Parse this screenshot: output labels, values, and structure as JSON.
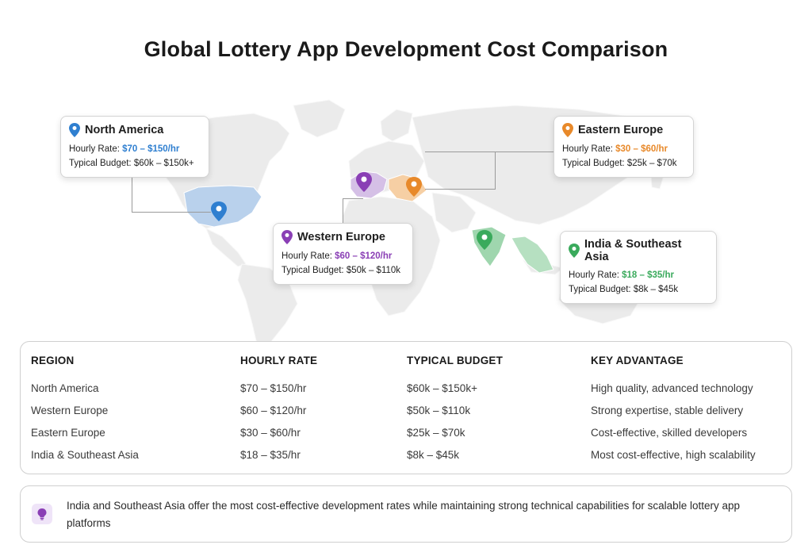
{
  "title": "Global Lottery App Development Cost Comparison",
  "colors": {
    "north_america": "#2f7fd0",
    "western_europe": "#8a3fb5",
    "eastern_europe": "#e8892a",
    "india_sea": "#3aaa5c",
    "land": "#ebebeb"
  },
  "callouts": {
    "north_america": {
      "name": "North America",
      "hourly_label": "Hourly Rate:",
      "hourly_value": "$70 – $150/hr",
      "budget": "Typical Budget: $60k – $150k+",
      "icon": "map-pin-icon"
    },
    "eastern_europe": {
      "name": "Eastern Europe",
      "hourly_label": "Hourly Rate:",
      "hourly_value": "$30 – $60/hr",
      "budget": "Typical Budget: $25k – $70k",
      "icon": "map-pin-icon"
    },
    "western_europe": {
      "name": "Western Europe",
      "hourly_label": "Hourly Rate:",
      "hourly_value": "$60 – $120/hr",
      "budget": "Typical Budget: $50k – $110k",
      "icon": "map-pin-icon"
    },
    "india_sea": {
      "name": "India & Southeast Asia",
      "hourly_label": "Hourly Rate:",
      "hourly_value": "$18 – $35/hr",
      "budget": "Typical Budget: $8k – $45k",
      "icon": "map-pin-icon"
    }
  },
  "table": {
    "headers": [
      "REGION",
      "HOURLY RATE",
      "TYPICAL BUDGET",
      "KEY ADVANTAGE"
    ],
    "rows": [
      [
        "North America",
        "$70 – $150/hr",
        "$60k – $150k+",
        "High quality, advanced technology"
      ],
      [
        "Western Europe",
        "$60 – $120/hr",
        "$50k – $110k",
        "Strong expertise, stable delivery"
      ],
      [
        "Eastern Europe",
        "$30 – $60/hr",
        "$25k – $70k",
        "Cost-effective, skilled developers"
      ],
      [
        "India & Southeast Asia",
        "$18 – $35/hr",
        "$8k – $45k",
        "Most cost-effective, high scalability"
      ]
    ]
  },
  "note": {
    "icon": "lightbulb-icon",
    "text": "India and Southeast Asia offer the most cost-effective development rates while maintaining strong technical capabilities for scalable lottery app platforms"
  }
}
